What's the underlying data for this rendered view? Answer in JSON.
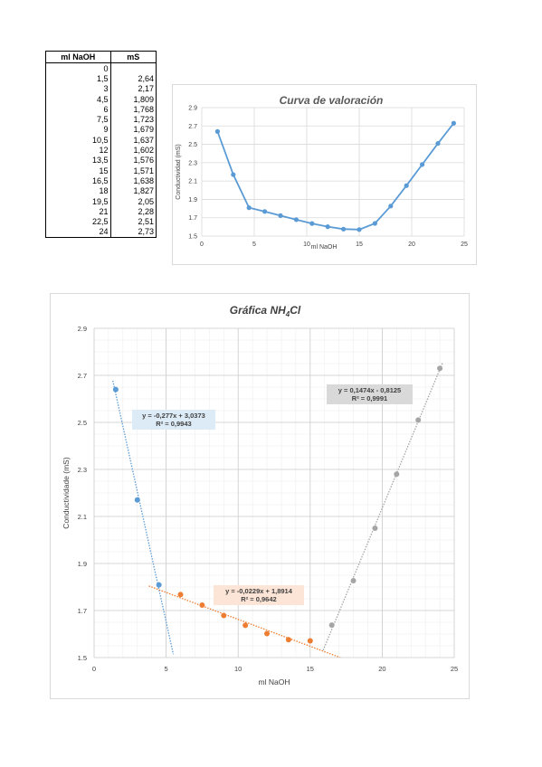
{
  "table": {
    "headers": [
      "ml NaOH",
      "mS"
    ],
    "rows": [
      [
        "0",
        ""
      ],
      [
        "1,5",
        "2,64"
      ],
      [
        "3",
        "2,17"
      ],
      [
        "4,5",
        "1,809"
      ],
      [
        "6",
        "1,768"
      ],
      [
        "7,5",
        "1,723"
      ],
      [
        "9",
        "1,679"
      ],
      [
        "10,5",
        "1,637"
      ],
      [
        "12",
        "1,602"
      ],
      [
        "13,5",
        "1,576"
      ],
      [
        "15",
        "1,571"
      ],
      [
        "16,5",
        "1,638"
      ],
      [
        "18",
        "1,827"
      ],
      [
        "19,5",
        "2,05"
      ],
      [
        "21",
        "2,28"
      ],
      [
        "22,5",
        "2,51"
      ],
      [
        "24",
        "2,73"
      ]
    ]
  },
  "chart_data": [
    {
      "type": "line",
      "title": "Curva de valoración",
      "xlabel": "ml NaOH",
      "ylabel": "Conductividad (mS)",
      "xlim": [
        0,
        25
      ],
      "ylim": [
        1.5,
        2.9
      ],
      "xticks": [
        0,
        5,
        10,
        15,
        20,
        25
      ],
      "yticks": [
        1.5,
        1.7,
        1.9,
        2.1,
        2.3,
        2.5,
        2.7,
        2.9
      ],
      "grid": true,
      "color": "#5b9bd5",
      "x": [
        1.5,
        3,
        4.5,
        6,
        7.5,
        9,
        10.5,
        12,
        13.5,
        15,
        16.5,
        18,
        19.5,
        21,
        22.5,
        24
      ],
      "y": [
        2.64,
        2.17,
        1.809,
        1.768,
        1.723,
        1.679,
        1.637,
        1.602,
        1.576,
        1.571,
        1.638,
        1.827,
        2.05,
        2.28,
        2.51,
        2.73
      ]
    },
    {
      "type": "scatter",
      "title_main": "Gráfica NH",
      "title_sub": "4",
      "title_tail": "Cl",
      "xlabel": "ml NaOH",
      "ylabel": "Conductividade (mS)",
      "xlim": [
        0,
        25
      ],
      "ylim": [
        1.5,
        2.9
      ],
      "xticks": [
        0,
        5,
        10,
        15,
        20,
        25
      ],
      "yticks": [
        1.5,
        1.7,
        1.9,
        2.1,
        2.3,
        2.5,
        2.7,
        2.9
      ],
      "grid": true,
      "minor_grid": true,
      "series": [
        {
          "color": "#5b9bd5",
          "x": [
            1.5,
            3,
            4.5
          ],
          "y": [
            2.64,
            2.17,
            1.809
          ],
          "trendline": {
            "slope": -0.277,
            "intercept": 3.0373,
            "x_range": [
              1.3,
              5.5
            ]
          },
          "equation": "y = -0,277x + 3,0373",
          "r2": "R² = 0,9943",
          "label_bg": "#ddebf7"
        },
        {
          "color": "#ed7d31",
          "x": [
            6,
            7.5,
            9,
            10.5,
            12,
            13.5,
            15
          ],
          "y": [
            1.768,
            1.723,
            1.679,
            1.637,
            1.602,
            1.576,
            1.571
          ],
          "trendline": {
            "slope": -0.0229,
            "intercept": 1.8914,
            "x_range": [
              3.8,
              17.1
            ]
          },
          "equation": "y = -0,0229x + 1,8914",
          "r2": "R² = 0,9642",
          "label_bg": "#fce4d6"
        },
        {
          "color": "#a5a5a5",
          "x": [
            16.5,
            18,
            19.5,
            21,
            22.5,
            24
          ],
          "y": [
            1.638,
            1.827,
            2.05,
            2.28,
            2.51,
            2.73
          ],
          "trendline": {
            "slope": 0.1474,
            "intercept": -0.8125,
            "x_range": [
              15.9,
              24.2
            ]
          },
          "equation": "y = 0,1474x - 0,8125",
          "r2": "R² = 0,9991",
          "label_bg": "#d9d9d9"
        }
      ]
    }
  ]
}
